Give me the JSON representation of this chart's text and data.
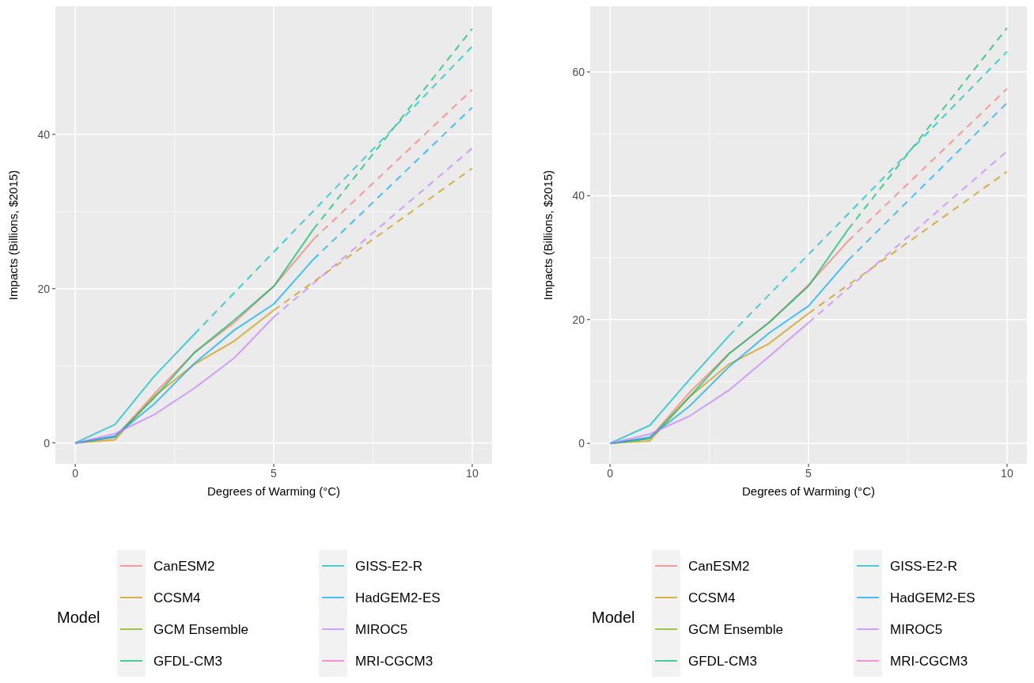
{
  "chart_data": [
    {
      "type": "line",
      "xlabel": "Degrees of Warming (°C)",
      "ylabel": "Impacts (Billions, $2015)",
      "legend_title": "Model",
      "legend": "bottom",
      "grid": true,
      "xlim": [
        -0.5,
        10.5
      ],
      "ylim": [
        -2.7,
        56.6
      ],
      "xticks": [
        0,
        5,
        10
      ],
      "yticks": [
        0,
        20,
        40
      ],
      "series": [
        {
          "name": "CanESM2",
          "color": "#f8766d",
          "line_style": "solid",
          "x": [
            0,
            1,
            2,
            3,
            4,
            5,
            6
          ],
          "values": [
            0,
            0.7,
            6.4,
            11.7,
            15.6,
            20.3,
            26.4
          ]
        },
        {
          "name": "CCSM4",
          "color": "#cd9600",
          "line_style": "solid",
          "x": [
            0,
            1,
            2,
            3,
            4,
            5
          ],
          "values": [
            0,
            0.4,
            6.1,
            10.2,
            13.2,
            17.2
          ]
        },
        {
          "name": "GCM Ensemble",
          "color": "#7cae00",
          "line_style": "solid"
        },
        {
          "name": "GFDL-CM3",
          "color": "#00be67",
          "line_style": "solid",
          "x": [
            0,
            1,
            2,
            3,
            4,
            5,
            6
          ],
          "values": [
            0,
            0.8,
            5.9,
            11.7,
            15.9,
            20.3,
            27.7
          ]
        },
        {
          "name": "GISS-E2-R",
          "color": "#00bfc4",
          "line_style": "solid",
          "x": [
            0,
            1,
            2,
            3
          ],
          "values": [
            0,
            2.4,
            8.7,
            14.1
          ]
        },
        {
          "name": "HadGEM2-ES",
          "color": "#00a9ff",
          "line_style": "solid",
          "x": [
            0,
            1,
            2,
            3,
            4,
            5,
            6
          ],
          "values": [
            0,
            0.9,
            5.1,
            10.3,
            14.6,
            18.0,
            23.8
          ]
        },
        {
          "name": "MIROC5",
          "color": "#c77cff",
          "line_style": "solid",
          "x": [
            0,
            1,
            2,
            3,
            4,
            5
          ],
          "values": [
            0,
            1.2,
            3.7,
            7.1,
            11.0,
            16.3
          ]
        },
        {
          "name": "MRI-CGCM3",
          "color": "#ff61cc",
          "line_style": "solid"
        },
        {
          "color": "#f8766d",
          "line_style": "dashed",
          "x": [
            6,
            10
          ],
          "values": [
            26.4,
            45.8
          ]
        },
        {
          "color": "#cd9600",
          "line_style": "dashed",
          "x": [
            5,
            10
          ],
          "values": [
            17.2,
            35.6
          ]
        },
        {
          "color": "#00be67",
          "line_style": "dashed",
          "x": [
            6,
            10
          ],
          "values": [
            27.7,
            53.7
          ]
        },
        {
          "color": "#00bfc4",
          "line_style": "dashed",
          "x": [
            3,
            10
          ],
          "values": [
            14.1,
            51.4
          ]
        },
        {
          "color": "#00a9ff",
          "line_style": "dashed",
          "x": [
            6,
            10
          ],
          "values": [
            23.8,
            43.5
          ]
        },
        {
          "color": "#c77cff",
          "line_style": "dashed",
          "x": [
            5,
            10
          ],
          "values": [
            16.3,
            38.2
          ]
        }
      ]
    },
    {
      "type": "line",
      "xlabel": "Degrees of Warming (°C)",
      "ylabel": "Impacts (Billions, $2015)",
      "legend_title": "Model",
      "legend": "bottom",
      "grid": true,
      "xlim": [
        -0.5,
        10.5
      ],
      "ylim": [
        -3.3,
        70.6
      ],
      "xticks": [
        0,
        5,
        10
      ],
      "yticks": [
        0,
        20,
        40,
        60
      ],
      "series": [
        {
          "name": "CanESM2",
          "color": "#f8766d",
          "line_style": "solid",
          "x": [
            0,
            1,
            2,
            3,
            4,
            5,
            6
          ],
          "values": [
            0,
            0.8,
            8.2,
            14.5,
            19.5,
            25.6,
            32.7
          ]
        },
        {
          "name": "CCSM4",
          "color": "#cd9600",
          "line_style": "solid",
          "x": [
            0,
            1,
            2,
            3,
            4,
            5
          ],
          "values": [
            0,
            0.4,
            7.5,
            12.8,
            16.1,
            21.0
          ]
        },
        {
          "name": "GCM Ensemble",
          "color": "#7cae00",
          "line_style": "solid"
        },
        {
          "name": "GFDL-CM3",
          "color": "#00be67",
          "line_style": "solid",
          "x": [
            0,
            1,
            2,
            3,
            4,
            5,
            6
          ],
          "values": [
            0,
            0.8,
            7.5,
            14.5,
            19.5,
            25.4,
            34.6
          ]
        },
        {
          "name": "GISS-E2-R",
          "color": "#00bfc4",
          "line_style": "solid",
          "x": [
            0,
            1,
            2,
            3
          ],
          "values": [
            0,
            2.9,
            10.3,
            17.4
          ]
        },
        {
          "name": "HadGEM2-ES",
          "color": "#00a9ff",
          "line_style": "solid",
          "x": [
            0,
            1,
            2,
            3,
            4,
            5,
            6
          ],
          "values": [
            0,
            1.0,
            6.0,
            12.4,
            17.8,
            22.2,
            29.6
          ]
        },
        {
          "name": "MIROC5",
          "color": "#c77cff",
          "line_style": "solid",
          "x": [
            0,
            1,
            2,
            3,
            4,
            5
          ],
          "values": [
            0,
            1.5,
            4.4,
            8.6,
            14.0,
            19.5
          ]
        },
        {
          "name": "MRI-CGCM3",
          "color": "#ff61cc",
          "line_style": "solid"
        },
        {
          "color": "#f8766d",
          "line_style": "dashed",
          "x": [
            6,
            10
          ],
          "values": [
            32.7,
            57.3
          ]
        },
        {
          "color": "#cd9600",
          "line_style": "dashed",
          "x": [
            5,
            10
          ],
          "values": [
            21.0,
            43.9
          ]
        },
        {
          "color": "#00be67",
          "line_style": "dashed",
          "x": [
            6,
            10
          ],
          "values": [
            34.6,
            67.1
          ]
        },
        {
          "color": "#00bfc4",
          "line_style": "dashed",
          "x": [
            3,
            10
          ],
          "values": [
            17.4,
            63.3
          ]
        },
        {
          "color": "#00a9ff",
          "line_style": "dashed",
          "x": [
            6,
            10
          ],
          "values": [
            29.6,
            55.0
          ]
        },
        {
          "color": "#c77cff",
          "line_style": "dashed",
          "x": [
            5,
            10
          ],
          "values": [
            19.5,
            47.2
          ]
        }
      ]
    }
  ]
}
